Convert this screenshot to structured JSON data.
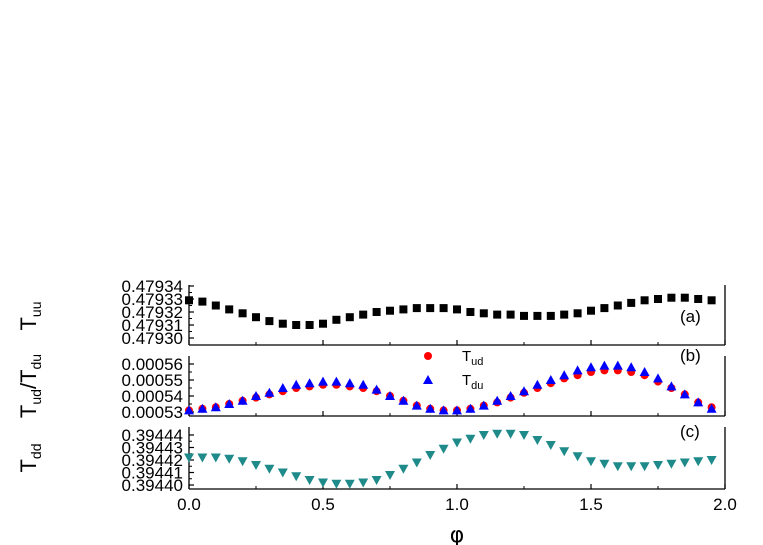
{
  "chart_data": [
    {
      "type": "scatter",
      "panel_tag": "(a)",
      "ylabel_main": "T",
      "ylabel_sub": "uu",
      "ylim": [
        0.4793,
        0.47934
      ],
      "yticks": [
        "0.47930",
        "0.47931",
        "0.47932",
        "0.47933",
        "0.47934"
      ],
      "ytick_values": [
        0.4793,
        0.47931,
        0.47932,
        0.47933,
        0.47934
      ],
      "series": [
        {
          "marker": "square",
          "color": "#000000",
          "x": [
            0.0,
            0.05,
            0.1,
            0.15,
            0.2,
            0.25,
            0.3,
            0.35,
            0.4,
            0.45,
            0.5,
            0.55,
            0.6,
            0.65,
            0.7,
            0.75,
            0.8,
            0.85,
            0.9,
            0.95,
            1.0,
            1.05,
            1.1,
            1.15,
            1.2,
            1.25,
            1.3,
            1.35,
            1.4,
            1.45,
            1.5,
            1.55,
            1.6,
            1.65,
            1.7,
            1.75,
            1.8,
            1.85,
            1.9,
            1.95
          ],
          "y": [
            0.479329,
            0.479328,
            0.479325,
            0.479322,
            0.479319,
            0.479316,
            0.479313,
            0.479311,
            0.47931,
            0.47931,
            0.479311,
            0.479314,
            0.479316,
            0.479318,
            0.47932,
            0.479321,
            0.479322,
            0.479323,
            0.479323,
            0.479323,
            0.479322,
            0.47932,
            0.479319,
            0.479318,
            0.479318,
            0.479317,
            0.479317,
            0.479317,
            0.479318,
            0.479319,
            0.479321,
            0.479323,
            0.479325,
            0.479327,
            0.479329,
            0.47933,
            0.479331,
            0.479331,
            0.47933,
            0.479329
          ]
        }
      ]
    },
    {
      "type": "scatter",
      "panel_tag": "(b)",
      "ylabel_main": "T",
      "ylabel_sub": "ud",
      "ylabel_main2": "/T",
      "ylabel_sub2": "du",
      "ylim": [
        0.000528,
        0.000566
      ],
      "yticks": [
        "0.00053",
        "0.00054",
        "0.00055",
        "0.00056"
      ],
      "ytick_values": [
        0.00053,
        0.00054,
        0.00055,
        0.00056
      ],
      "legend": [
        {
          "name_main": "T",
          "name_sub": "ud",
          "marker": "circle",
          "color": "#ff0000"
        },
        {
          "name_main": "T",
          "name_sub": "du",
          "marker": "triangle-up",
          "color": "#0000ff"
        }
      ],
      "series": [
        {
          "name": "Tud",
          "marker": "circle",
          "color": "#ff0000",
          "x": [
            0.0,
            0.05,
            0.1,
            0.15,
            0.2,
            0.25,
            0.3,
            0.35,
            0.4,
            0.45,
            0.5,
            0.55,
            0.6,
            0.65,
            0.7,
            0.75,
            0.8,
            0.85,
            0.9,
            0.95,
            1.0,
            1.05,
            1.1,
            1.15,
            1.2,
            1.25,
            1.3,
            1.35,
            1.4,
            1.45,
            1.5,
            1.55,
            1.6,
            1.65,
            1.7,
            1.75,
            1.8,
            1.85,
            1.9,
            1.95
          ],
          "y": [
            0.000531,
            0.000532,
            0.000533,
            0.000535,
            0.000537,
            0.000539,
            0.000541,
            0.000543,
            0.000545,
            0.000546,
            0.000547,
            0.000547,
            0.000546,
            0.000545,
            0.000543,
            0.00054,
            0.000537,
            0.000534,
            0.000532,
            0.000531,
            0.000531,
            0.000532,
            0.000534,
            0.000536,
            0.000539,
            0.000542,
            0.000545,
            0.000548,
            0.000551,
            0.000553,
            0.000555,
            0.000556,
            0.000556,
            0.000555,
            0.000553,
            0.000549,
            0.000545,
            0.000541,
            0.000536,
            0.000533
          ]
        },
        {
          "name": "Tdu",
          "marker": "triangle-up",
          "color": "#0000ff",
          "x": [
            0.0,
            0.05,
            0.1,
            0.15,
            0.2,
            0.25,
            0.3,
            0.35,
            0.4,
            0.45,
            0.5,
            0.55,
            0.6,
            0.65,
            0.7,
            0.75,
            0.8,
            0.85,
            0.9,
            0.95,
            1.0,
            1.05,
            1.1,
            1.15,
            1.2,
            1.25,
            1.3,
            1.35,
            1.4,
            1.45,
            1.5,
            1.55,
            1.6,
            1.65,
            1.7,
            1.75,
            1.8,
            1.85,
            1.9,
            1.95
          ],
          "y": [
            0.000531,
            0.000532,
            0.000533,
            0.000535,
            0.000537,
            0.00054,
            0.000542,
            0.000545,
            0.000547,
            0.000548,
            0.000549,
            0.000549,
            0.000548,
            0.000547,
            0.000544,
            0.00054,
            0.000537,
            0.000534,
            0.000532,
            0.000531,
            0.000531,
            0.000532,
            0.000534,
            0.000537,
            0.00054,
            0.000543,
            0.000547,
            0.00055,
            0.000553,
            0.000556,
            0.000558,
            0.000559,
            0.000559,
            0.000558,
            0.000555,
            0.000551,
            0.000546,
            0.000541,
            0.000536,
            0.000532
          ]
        }
      ]
    },
    {
      "type": "scatter",
      "panel_tag": "(c)",
      "ylabel_main": "T",
      "ylabel_sub": "dd",
      "ylim": [
        0.3944,
        0.394445
      ],
      "yticks": [
        "0.39440",
        "0.39441",
        "0.39442",
        "0.39443",
        "0.39444"
      ],
      "ytick_values": [
        0.3944,
        0.39441,
        0.39442,
        0.39443,
        0.39444
      ],
      "xlabel": "φ",
      "xlim": [
        0.0,
        2.0
      ],
      "xticks": [
        "0.0",
        "0.5",
        "1.0",
        "1.5",
        "2.0"
      ],
      "xtick_values": [
        0.0,
        0.5,
        1.0,
        1.5,
        2.0
      ],
      "series": [
        {
          "marker": "triangle-down",
          "color": "#1f8a8a",
          "x": [
            0.0,
            0.05,
            0.1,
            0.15,
            0.2,
            0.25,
            0.3,
            0.35,
            0.4,
            0.45,
            0.5,
            0.55,
            0.6,
            0.65,
            0.7,
            0.75,
            0.8,
            0.85,
            0.9,
            0.95,
            1.0,
            1.05,
            1.1,
            1.15,
            1.2,
            1.25,
            1.3,
            1.35,
            1.4,
            1.45,
            1.5,
            1.55,
            1.6,
            1.65,
            1.7,
            1.75,
            1.8,
            1.85,
            1.9,
            1.95
          ],
          "y": [
            0.394422,
            0.394422,
            0.394422,
            0.394421,
            0.394419,
            0.394416,
            0.394413,
            0.39441,
            0.394407,
            0.394404,
            0.394402,
            0.394401,
            0.394401,
            0.394402,
            0.394404,
            0.394408,
            0.394413,
            0.394418,
            0.394424,
            0.394429,
            0.394434,
            0.394437,
            0.39444,
            0.394441,
            0.394441,
            0.39444,
            0.394436,
            0.394432,
            0.394427,
            0.394423,
            0.394419,
            0.394417,
            0.394415,
            0.394415,
            0.394415,
            0.394416,
            0.394417,
            0.394418,
            0.394419,
            0.39442
          ]
        }
      ]
    }
  ]
}
